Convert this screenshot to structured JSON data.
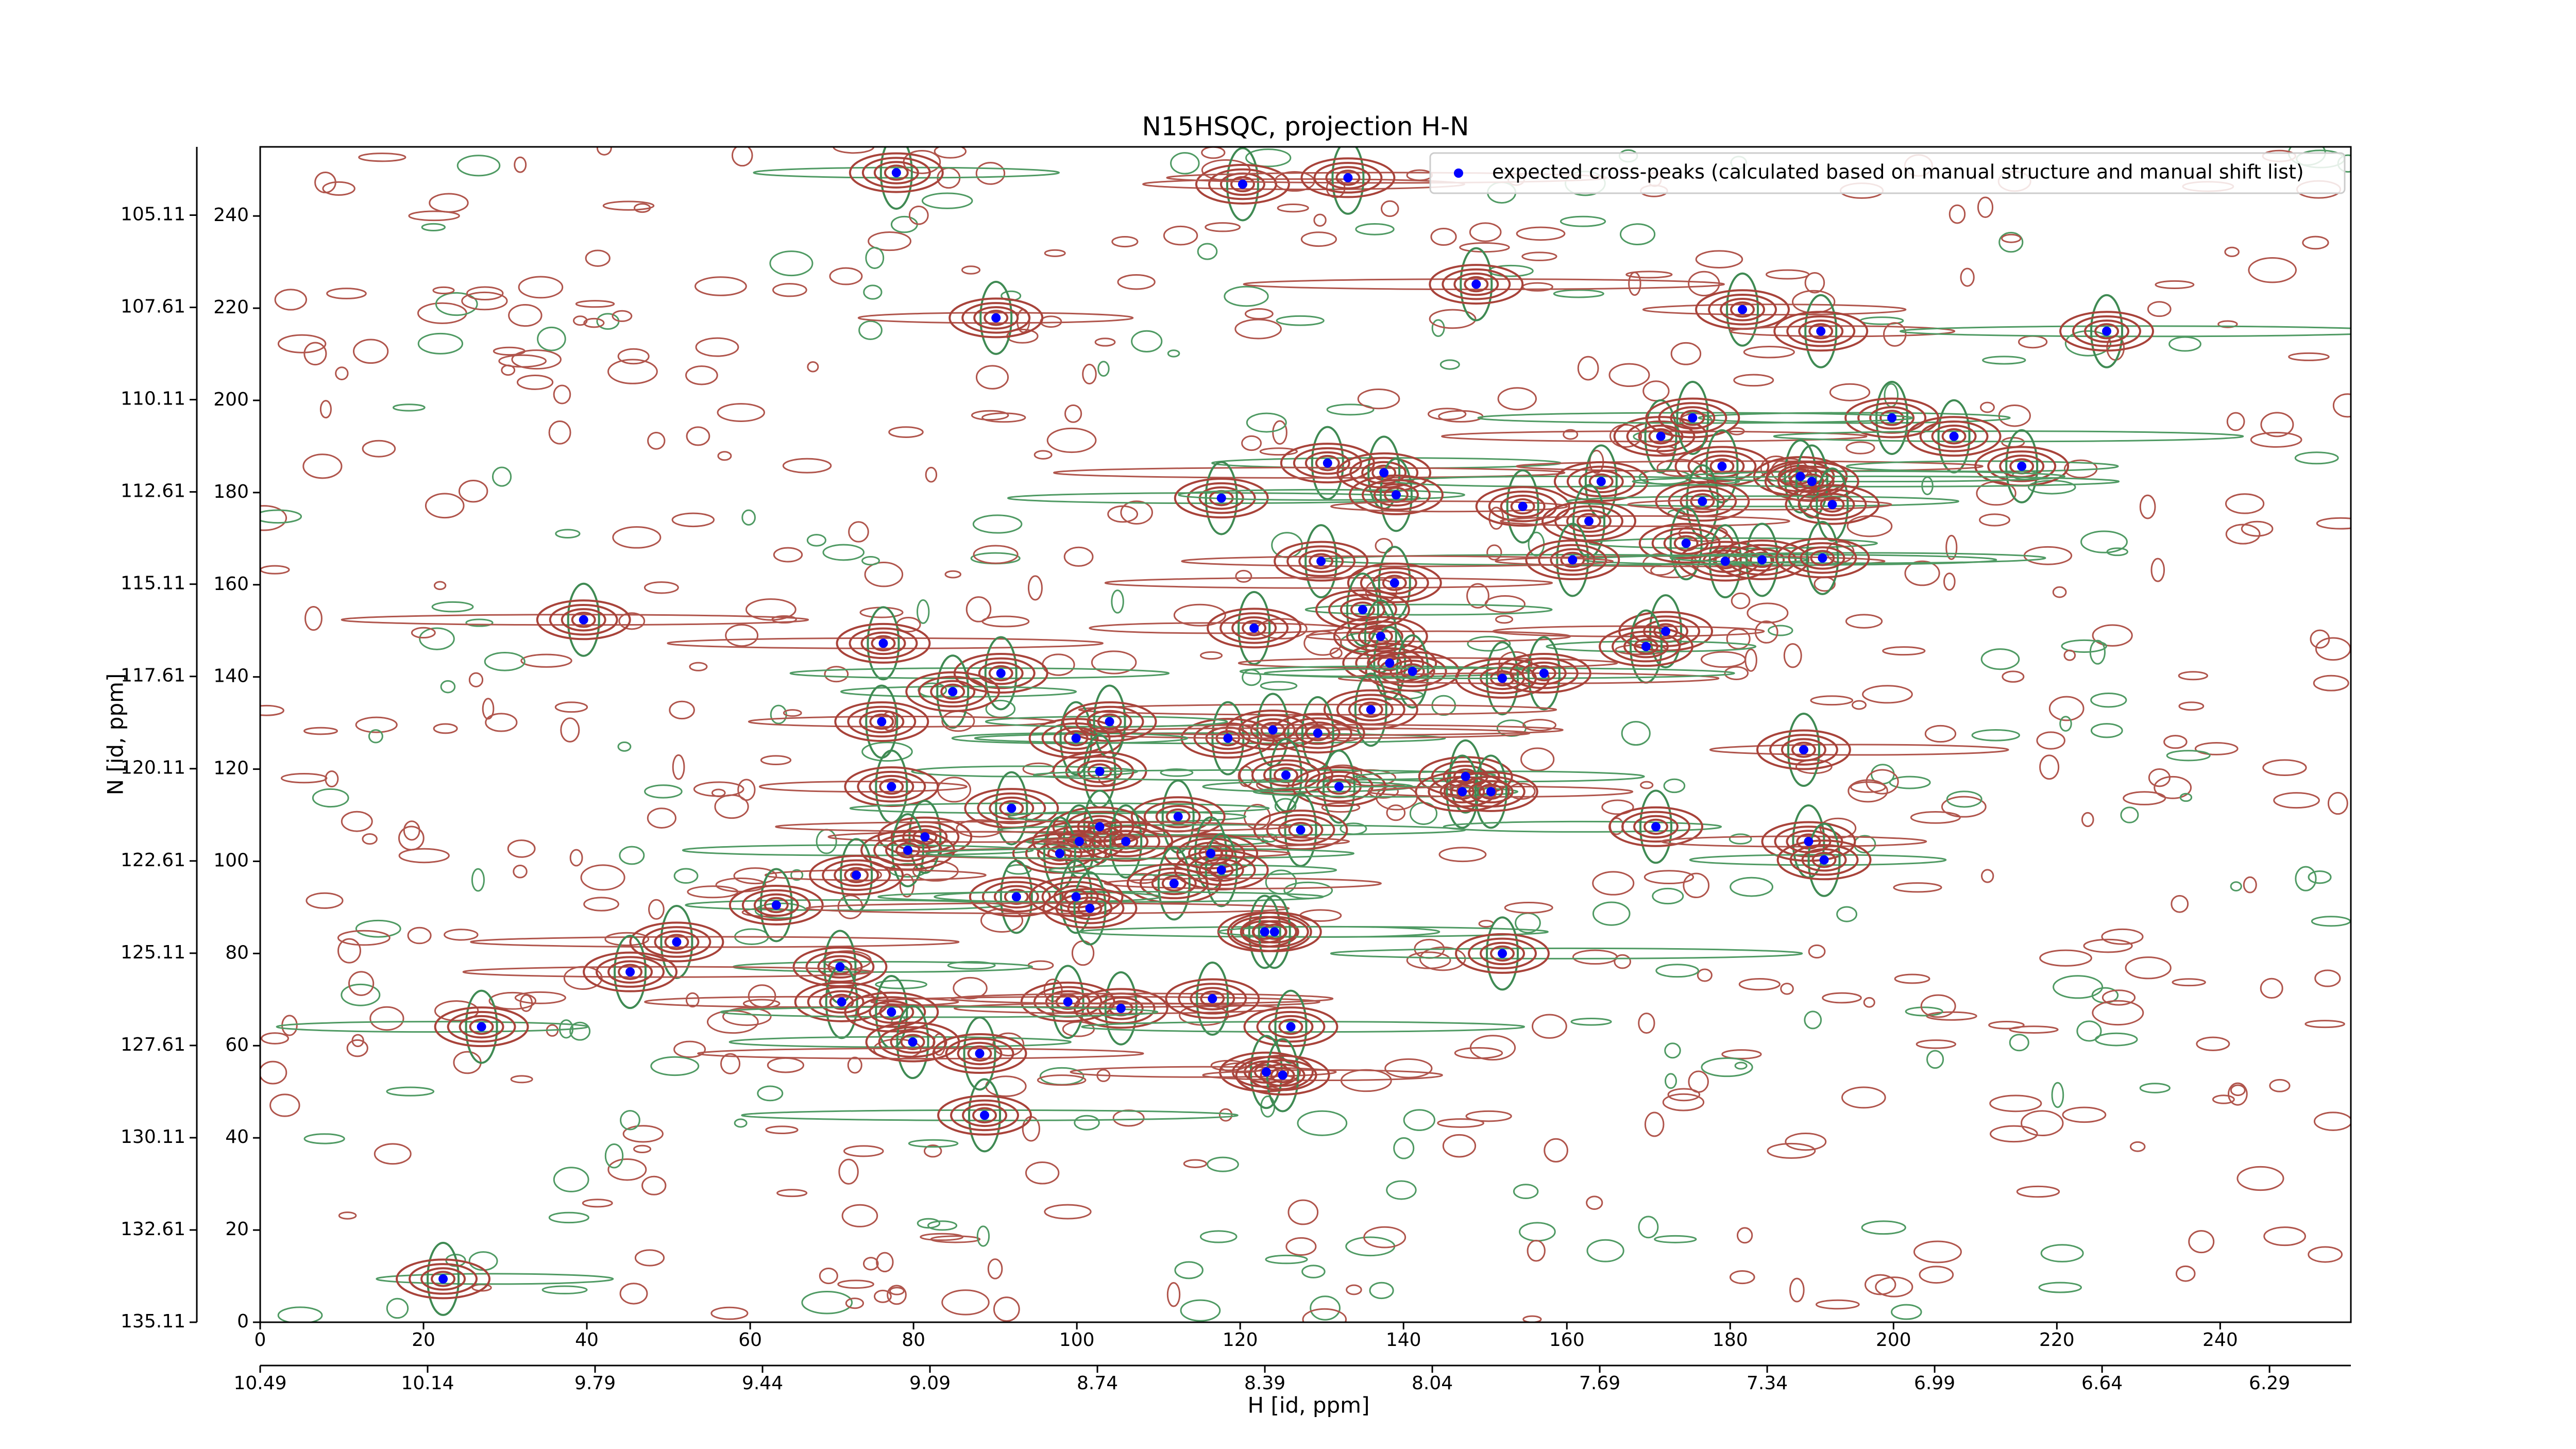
{
  "chart_data": {
    "type": "scatter",
    "title": "N15HSQC, projection H-N",
    "xlabel": "H [id, ppm]",
    "ylabel": "N [id, ppm]",
    "xlim": [
      0,
      256
    ],
    "ylim": [
      0,
      255
    ],
    "xticks": [
      0,
      20,
      40,
      60,
      80,
      100,
      120,
      140,
      160,
      180,
      200,
      220,
      240
    ],
    "yticks": [
      0,
      20,
      40,
      60,
      80,
      100,
      120,
      140,
      160,
      180,
      200,
      220,
      240
    ],
    "x2lim": [
      10.49,
      6.12
    ],
    "x2ticks": [
      10.49,
      10.14,
      9.79,
      9.44,
      9.09,
      8.74,
      8.39,
      8.04,
      7.69,
      7.34,
      6.99,
      6.64,
      6.29
    ],
    "y2lim": [
      135.11,
      103.26
    ],
    "y2ticks": [
      135.11,
      132.61,
      130.11,
      127.61,
      125.11,
      122.61,
      120.11,
      117.61,
      115.11,
      112.61,
      110.11,
      107.61,
      105.11
    ],
    "legend": "upper right",
    "x": [
      77.9,
      120.3,
      133.2,
      148.9,
      181.5,
      191.1,
      226.1,
      90.1,
      199.8,
      171.5,
      175.4,
      207.4,
      130.7,
      137.6,
      179.0,
      164.2,
      215.7,
      188.6,
      190.0,
      117.7,
      139.1,
      154.6,
      176.6,
      192.5,
      162.7,
      174.6,
      179.4,
      183.9,
      160.7,
      129.9,
      191.3,
      138.9,
      39.6,
      121.7,
      135.0,
      137.2,
      76.3,
      172.1,
      169.7,
      138.3,
      141.1,
      152.1,
      157.2,
      90.7,
      84.8,
      136.0,
      76.1,
      118.5,
      124.0,
      129.5,
      99.9,
      104.0,
      189.0,
      102.8,
      125.6,
      77.3,
      132.1,
      147.6,
      147.2,
      150.7,
      92.0,
      112.4,
      127.4,
      81.4,
      102.8,
      170.9,
      79.3,
      100.3,
      97.9,
      106.0,
      116.4,
      189.6,
      191.5,
      73.0,
      117.7,
      111.9,
      63.2,
      92.6,
      99.9,
      101.6,
      123.0,
      124.2,
      51.0,
      152.1,
      71.0,
      45.3,
      71.2,
      98.9,
      105.4,
      116.6,
      77.3,
      27.1,
      126.2,
      79.9,
      88.1,
      123.2,
      125.2,
      88.7,
      22.4
    ],
    "series": [
      {
        "name": "expected cross-peaks (calculated based on manual structure and manual shift list)",
        "color": "#0000ff",
        "values": [
          249.4,
          246.9,
          248.3,
          225.2,
          219.7,
          215.0,
          215.0,
          217.9,
          196.2,
          192.2,
          196.2,
          192.2,
          186.4,
          184.3,
          185.7,
          182.4,
          185.7,
          183.5,
          182.4,
          178.8,
          179.5,
          177.0,
          178.1,
          177.4,
          173.8,
          169.0,
          165.1,
          165.4,
          165.4,
          165.1,
          165.8,
          160.4,
          152.4,
          150.6,
          154.6,
          148.8,
          147.3,
          149.9,
          146.6,
          143.0,
          141.2,
          139.7,
          140.8,
          140.8,
          136.8,
          132.9,
          130.3,
          126.7,
          128.5,
          127.8,
          126.7,
          130.3,
          124.2,
          119.5,
          118.7,
          116.2,
          116.2,
          118.4,
          115.1,
          115.1,
          111.5,
          109.7,
          106.8,
          105.3,
          107.5,
          107.5,
          102.4,
          104.3,
          101.7,
          104.3,
          101.7,
          104.3,
          100.3,
          97.0,
          98.1,
          95.2,
          90.5,
          92.3,
          92.3,
          89.8,
          84.7,
          84.7,
          82.5,
          80.0,
          77.1,
          76.0,
          69.5,
          69.5,
          68.1,
          70.2,
          67.3,
          64.1,
          64.1,
          60.8,
          58.3,
          54.3,
          53.6,
          44.9,
          9.4
        ]
      }
    ]
  }
}
